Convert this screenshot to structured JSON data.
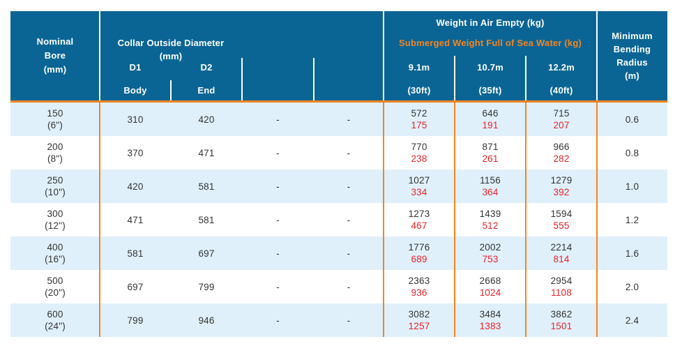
{
  "colors": {
    "header_bg": "#0B6594",
    "accent_orange": "#F5841F",
    "alt_row_bg": "#DFF0FA",
    "row_bg": "#FFFFFF",
    "submerged_red": "#EC2127",
    "body_text": "#333333",
    "header_text": "#FFFFFF"
  },
  "header": {
    "nominal_bore": {
      "lines": [
        "Nominal",
        "Bore",
        "(mm)"
      ]
    },
    "collar": {
      "title": "Collar Outside Diameter",
      "unit": "(mm)",
      "d1": "D1",
      "d2": "D2",
      "d1_sub": "Body",
      "d2_sub": "End"
    },
    "weight": {
      "air_label": "Weight in Air Empty (kg)",
      "submerged_label": "Submerged Weight Full of Sea Water (kg)",
      "columns": [
        {
          "length_m": "9.1m",
          "length_ft": "(30ft)"
        },
        {
          "length_m": "10.7m",
          "length_ft": "(35ft)"
        },
        {
          "length_m": "12.2m",
          "length_ft": "(40ft)"
        }
      ]
    },
    "min_bend": {
      "lines": [
        "Minimum",
        "Bending",
        "Radius",
        "(m)"
      ]
    }
  },
  "rows": [
    {
      "bore_mm": "150",
      "bore_in": "(6\")",
      "d1_body": "310",
      "d2_end": "420",
      "col4": "-",
      "col5": "-",
      "w1_air": "572",
      "w1_sub": "175",
      "w2_air": "646",
      "w2_sub": "191",
      "w3_air": "715",
      "w3_sub": "207",
      "min_bend": "0.6"
    },
    {
      "bore_mm": "200",
      "bore_in": "(8\")",
      "d1_body": "370",
      "d2_end": "471",
      "col4": "-",
      "col5": "-",
      "w1_air": "770",
      "w1_sub": "238",
      "w2_air": "871",
      "w2_sub": "261",
      "w3_air": "966",
      "w3_sub": "282",
      "min_bend": "0.8"
    },
    {
      "bore_mm": "250",
      "bore_in": "(10\")",
      "d1_body": "420",
      "d2_end": "581",
      "col4": "-",
      "col5": "-",
      "w1_air": "1027",
      "w1_sub": "334",
      "w2_air": "1156",
      "w2_sub": "364",
      "w3_air": "1279",
      "w3_sub": "392",
      "min_bend": "1.0"
    },
    {
      "bore_mm": "300",
      "bore_in": "(12\")",
      "d1_body": "471",
      "d2_end": "581",
      "col4": "-",
      "col5": "-",
      "w1_air": "1273",
      "w1_sub": "467",
      "w2_air": "1439",
      "w2_sub": "512",
      "w3_air": "1594",
      "w3_sub": "555",
      "min_bend": "1.2"
    },
    {
      "bore_mm": "400",
      "bore_in": "(16\")",
      "d1_body": "581",
      "d2_end": "697",
      "col4": "-",
      "col5": "-",
      "w1_air": "1776",
      "w1_sub": "689",
      "w2_air": "2002",
      "w2_sub": "753",
      "w3_air": "2214",
      "w3_sub": "814",
      "min_bend": "1.6"
    },
    {
      "bore_mm": "500",
      "bore_in": "(20\")",
      "d1_body": "697",
      "d2_end": "799",
      "col4": "-",
      "col5": "-",
      "w1_air": "2363",
      "w1_sub": "936",
      "w2_air": "2668",
      "w2_sub": "1024",
      "w3_air": "2954",
      "w3_sub": "1108",
      "min_bend": "2.0"
    },
    {
      "bore_mm": "600",
      "bore_in": "(24\")",
      "d1_body": "799",
      "d2_end": "946",
      "col4": "-",
      "col5": "-",
      "w1_air": "3082",
      "w1_sub": "1257",
      "w2_air": "3484",
      "w2_sub": "1383",
      "w3_air": "3862",
      "w3_sub": "1501",
      "min_bend": "2.4"
    }
  ]
}
